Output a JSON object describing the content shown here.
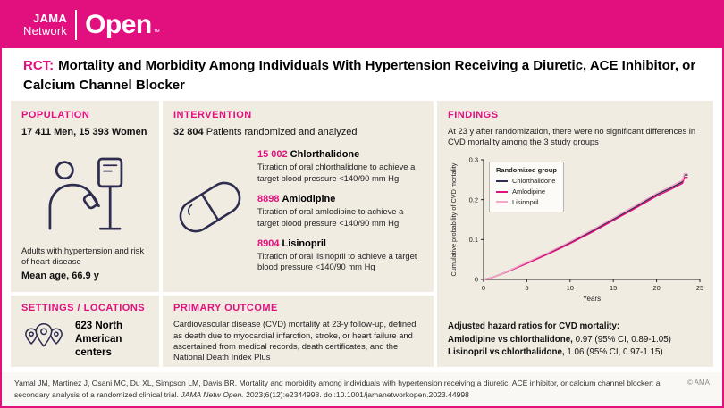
{
  "colors": {
    "magenta": "#e20f7e",
    "navy": "#2e2d4f",
    "light_pink": "#f3a8c9",
    "panel_beige": "#f1ece2"
  },
  "header": {
    "logo_jama": "JAMA",
    "logo_network": "Network",
    "logo_open": "Open",
    "logo_tm": "™"
  },
  "title": {
    "tag": "RCT:",
    "text": "Mortality and Morbidity Among Individuals With Hypertension Receiving a Diuretic, ACE Inhibitor, or Calcium Channel Blocker"
  },
  "population": {
    "heading": "POPULATION",
    "stat": "17 411 Men, 15 393 Women",
    "description": "Adults with hypertension and risk of heart disease",
    "mean_age": "Mean age, 66.9 y"
  },
  "intervention": {
    "heading": "INTERVENTION",
    "count": "32 804",
    "count_label": "Patients randomized and analyzed",
    "drugs": [
      {
        "count": "15 002",
        "name": "Chlorthalidone",
        "description": "Titration of oral chlorthalidone to achieve a target blood pressure <140/90 mm Hg"
      },
      {
        "count": "8898",
        "name": "Amlodipine",
        "description": "Titration of oral amlodipine to achieve a target blood pressure <140/90 mm Hg"
      },
      {
        "count": "8904",
        "name": "Lisinopril",
        "description": "Titration of oral lisinopril to achieve a target blood pressure <140/90 mm Hg"
      }
    ]
  },
  "findings": {
    "heading": "FINDINGS",
    "summary": "At 23 y after randomization, there were no significant differences in CVD mortality among the 3 study groups",
    "hr_title": "Adjusted hazard ratios for CVD mortality:",
    "hr": [
      {
        "label": "Amlodipine vs chlorthalidone,",
        "value": "0.97 (95% CI, 0.89-1.05)"
      },
      {
        "label": "Lisinopril vs chlorthalidone,",
        "value": "1.06 (95% CI, 0.97-1.15)"
      }
    ]
  },
  "chart_data": {
    "type": "line",
    "title": "",
    "xlabel": "Years",
    "ylabel": "Cumulative probability of CVD mortality",
    "xlim": [
      0,
      25
    ],
    "ylim": [
      0,
      0.3
    ],
    "x_ticks": [
      0,
      5,
      10,
      15,
      20,
      25
    ],
    "y_ticks": [
      0,
      0.1,
      0.2,
      0.3
    ],
    "grid": false,
    "legend_title": "Randomized group",
    "legend_position": "top-left",
    "x": [
      0,
      1,
      2.5,
      5,
      7.5,
      10,
      12.5,
      15,
      17.5,
      20,
      21.5,
      23,
      23.2,
      23.6
    ],
    "series": [
      {
        "name": "Chlorthalidone",
        "color": "#2e2d4f",
        "values": [
          0,
          0.005,
          0.018,
          0.042,
          0.066,
          0.092,
          0.121,
          0.151,
          0.181,
          0.213,
          0.228,
          0.245,
          0.262,
          0.262
        ]
      },
      {
        "name": "Amlodipine",
        "color": "#e20f7e",
        "values": [
          0,
          0.005,
          0.017,
          0.04,
          0.064,
          0.09,
          0.118,
          0.148,
          0.178,
          0.209,
          0.224,
          0.241,
          0.256,
          0.256
        ]
      },
      {
        "name": "Lisinopril",
        "color": "#f3a8c9",
        "values": [
          0,
          0.005,
          0.018,
          0.043,
          0.068,
          0.095,
          0.124,
          0.154,
          0.185,
          0.216,
          0.232,
          0.249,
          0.265,
          0.265
        ]
      }
    ]
  },
  "settings": {
    "heading": "SETTINGS / LOCATIONS",
    "stat": "623 North American centers"
  },
  "primary_outcome": {
    "heading": "PRIMARY OUTCOME",
    "text": "Cardiovascular disease (CVD) mortality at 23-y follow-up, defined as death due to myocardial infarction, stroke, or heart failure and ascertained from medical records, death certificates, and the National Death Index Plus"
  },
  "footer": {
    "citation_1": "Yamal JM, Martinez J, Osani MC, Du XL, Simpson LM, Davis BR. Mortality and morbidity among individuals with hypertension receiving a diuretic, ACE inhibitor, or calcium channel blocker: a secondary analysis of a randomized clinical trial.",
    "journal": "JAMA Netw Open.",
    "citation_2": "2023;6(12):e2344998. doi:10.1001/jamanetworkopen.2023.44998",
    "copyright": "© AMA"
  }
}
